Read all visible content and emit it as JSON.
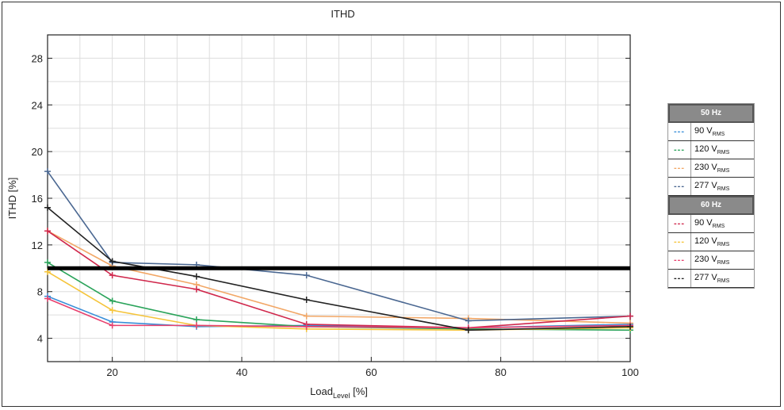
{
  "chart_data": {
    "type": "line",
    "title": "ITHD",
    "xlabel": "Load",
    "xlabel_sub": "Level",
    "xlabel_unit": "[%]",
    "ylabel": "ITHD [%]",
    "xlim": [
      10,
      100
    ],
    "ylim": [
      2,
      30
    ],
    "xticks": [
      20,
      40,
      60,
      80,
      100
    ],
    "yticks": [
      4,
      8,
      12,
      16,
      20,
      24,
      28
    ],
    "grid": true,
    "x": [
      10,
      20,
      33,
      50,
      75,
      100
    ],
    "threshold": 10,
    "legend_position": "right",
    "legend_groups": [
      {
        "title": "50 Hz",
        "series": [
          0,
          1,
          2,
          3
        ]
      },
      {
        "title": "60 Hz",
        "series": [
          4,
          5,
          6,
          7
        ]
      }
    ],
    "series": [
      {
        "name": "90 V",
        "sub": "RMS",
        "group": "50 Hz",
        "color": "#3a8fd8",
        "values": [
          7.6,
          5.4,
          5.0,
          5.1,
          4.9,
          5.2
        ]
      },
      {
        "name": "120 V",
        "sub": "RMS",
        "group": "50 Hz",
        "color": "#2aa35a",
        "values": [
          10.5,
          7.2,
          5.6,
          5.0,
          4.8,
          4.7
        ]
      },
      {
        "name": "230 V",
        "sub": "RMS",
        "group": "50 Hz",
        "color": "#f2a766",
        "values": [
          13.2,
          10.2,
          8.6,
          5.9,
          5.7,
          5.3
        ]
      },
      {
        "name": "277 V",
        "sub": "RMS",
        "group": "50 Hz",
        "color": "#4a6791",
        "values": [
          18.3,
          10.5,
          10.3,
          9.4,
          5.5,
          5.9
        ]
      },
      {
        "name": "90 V",
        "sub": "RMS",
        "group": "60 Hz",
        "color": "#d0284c",
        "values": [
          13.2,
          9.4,
          8.2,
          5.2,
          4.9,
          5.9
        ]
      },
      {
        "name": "120 V",
        "sub": "RMS",
        "group": "60 Hz",
        "color": "#f5c43a",
        "values": [
          9.7,
          6.4,
          5.1,
          4.8,
          4.7,
          4.9
        ]
      },
      {
        "name": "230 V",
        "sub": "RMS",
        "group": "60 Hz",
        "color": "#e8406e",
        "values": [
          7.4,
          5.1,
          5.1,
          5.0,
          4.9,
          5.1
        ]
      },
      {
        "name": "277 V",
        "sub": "RMS",
        "group": "60 Hz",
        "color": "#222222",
        "values": [
          15.2,
          10.6,
          9.3,
          7.3,
          4.7,
          5.0
        ]
      }
    ]
  }
}
